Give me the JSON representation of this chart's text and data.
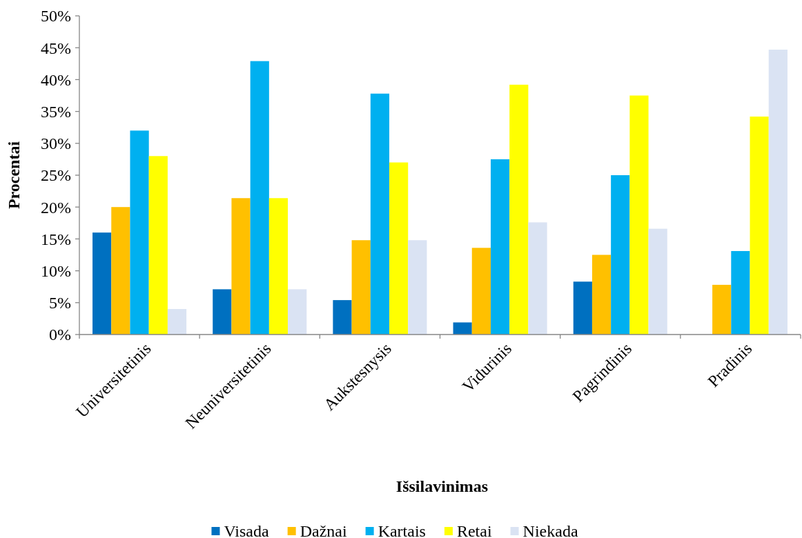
{
  "chart_data": {
    "type": "bar",
    "xlabel": "Išsilavinimas",
    "ylabel": "Procentai",
    "categories": [
      "Universitetinis",
      "Neuniversitetinis",
      "Aukstesnysis",
      "Vidurinis",
      "Pagrindinis",
      "Pradinis"
    ],
    "series": [
      {
        "name": "Visada",
        "color": "#0070c0",
        "values": [
          16,
          7.1,
          5.4,
          1.9,
          8.3,
          null
        ]
      },
      {
        "name": "Dažnai",
        "color": "#ffc000",
        "values": [
          20,
          21.4,
          14.8,
          13.6,
          12.5,
          7.8
        ]
      },
      {
        "name": "Kartais",
        "color": "#00b0f0",
        "values": [
          32,
          42.9,
          37.8,
          27.5,
          25,
          13.1
        ]
      },
      {
        "name": "Retai",
        "color": "#ffff00",
        "values": [
          28,
          21.4,
          27,
          39.2,
          37.5,
          34.2
        ]
      },
      {
        "name": "Niekada",
        "color": "#dae3f3",
        "values": [
          4,
          7.1,
          14.8,
          17.6,
          16.6,
          44.7
        ]
      }
    ],
    "ylim": [
      0,
      50
    ],
    "yticks": [
      {
        "value": 0,
        "label": "0%"
      },
      {
        "value": 5,
        "label": "5%"
      },
      {
        "value": 10,
        "label": "10%"
      },
      {
        "value": 15,
        "label": "15%"
      },
      {
        "value": 20,
        "label": "20%"
      },
      {
        "value": 25,
        "label": "25%"
      },
      {
        "value": 30,
        "label": "30%"
      },
      {
        "value": 35,
        "label": "35%"
      },
      {
        "value": 40,
        "label": "40%"
      },
      {
        "value": 45,
        "label": "45%"
      },
      {
        "value": 50,
        "label": "50%"
      }
    ],
    "legend": "bottom"
  }
}
